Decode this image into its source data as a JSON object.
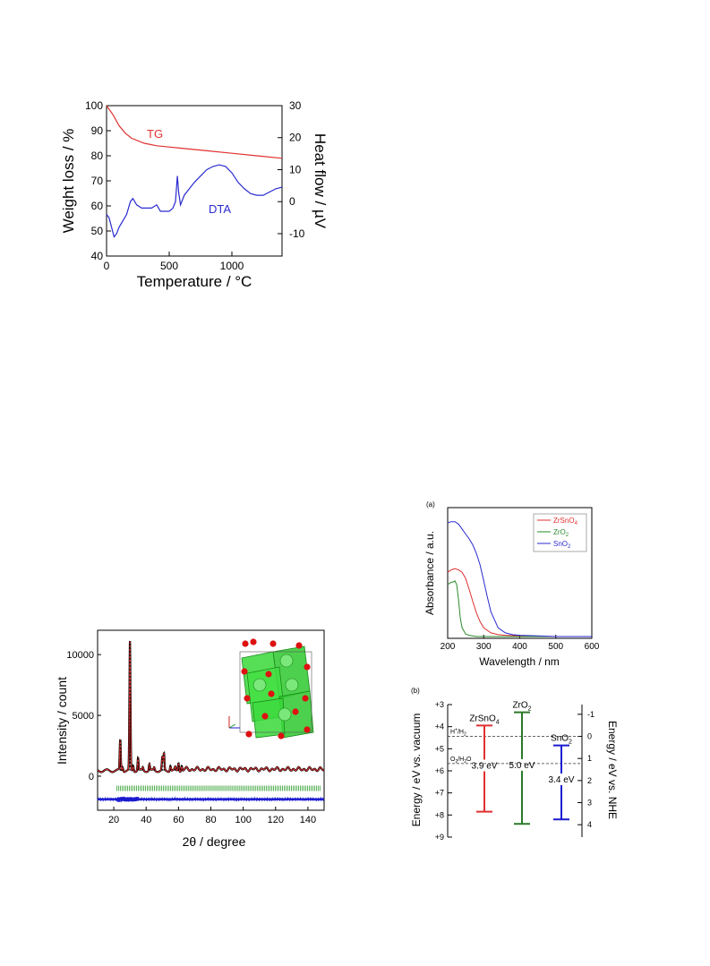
{
  "chart_data": [
    {
      "type": "line",
      "xlabel": "Temperature / °C",
      "ylabel_left": "Weight loss / %",
      "ylabel_right": "Heat flow / µV",
      "xlim": [
        0,
        1400
      ],
      "ylim_left": [
        40,
        100
      ],
      "ylim_right": [
        -17,
        30
      ],
      "x_ticks": [
        "0",
        "500",
        "1000"
      ],
      "y_left_ticks": [
        "40",
        "50",
        "60",
        "70",
        "80",
        "90",
        "100"
      ],
      "y_right_ticks": [
        "-10",
        "0",
        "10",
        "20",
        "30"
      ],
      "series": [
        {
          "name": "TG",
          "axis": "left",
          "color": "#e03030",
          "x": [
            0,
            50,
            100,
            150,
            200,
            300,
            400,
            500,
            600,
            800,
            1000,
            1200,
            1400
          ],
          "y": [
            100,
            96.5,
            92,
            89,
            87,
            85,
            84,
            83.5,
            83,
            82,
            81,
            80,
            79
          ]
        },
        {
          "name": "DTA",
          "axis": "right",
          "color": "#2a2ad0",
          "x": [
            0,
            20,
            40,
            60,
            80,
            100,
            130,
            160,
            190,
            210,
            240,
            280,
            320,
            360,
            400,
            430,
            460,
            500,
            530,
            550,
            565,
            575,
            590,
            620,
            660,
            700,
            750,
            800,
            850,
            900,
            950,
            1000,
            1050,
            1100,
            1150,
            1200,
            1250,
            1300,
            1350,
            1400
          ],
          "y": [
            -4,
            -5,
            -8,
            -11,
            -10,
            -8,
            -6,
            -4,
            0,
            1,
            -1,
            -2,
            -2,
            -2,
            -1,
            -3,
            -3,
            -3,
            -2,
            0,
            8,
            3,
            -1,
            2,
            4,
            6,
            8,
            10,
            11,
            11.5,
            11,
            9,
            6,
            4,
            2.5,
            2,
            2,
            3,
            4,
            4.5
          ]
        }
      ]
    },
    {
      "type": "line",
      "xlabel": "Wavelength / nm",
      "ylabel": "Absorbance / a.u.",
      "panel_label": "(a)",
      "xlim": [
        200,
        600
      ],
      "x_ticks": [
        "200",
        "300",
        "400",
        "500",
        "600"
      ],
      "legend": "top-right",
      "series": [
        {
          "name": "ZrSnO",
          "subscript": "4",
          "color": "#e03030",
          "x": [
            200,
            210,
            220,
            230,
            240,
            250,
            260,
            270,
            280,
            290,
            300,
            320,
            340,
            360,
            400,
            500,
            600
          ],
          "y": [
            0.52,
            0.54,
            0.55,
            0.54,
            0.52,
            0.47,
            0.38,
            0.28,
            0.19,
            0.12,
            0.07,
            0.03,
            0.015,
            0.01,
            0.005,
            0.0,
            0.0
          ]
        },
        {
          "name": "ZrO",
          "subscript": "2",
          "color": "#2a8a2a",
          "x": [
            200,
            210,
            215,
            220,
            225,
            230,
            235,
            240,
            250,
            260,
            280,
            300,
            600
          ],
          "y": [
            0.42,
            0.44,
            0.44,
            0.45,
            0.42,
            0.3,
            0.15,
            0.07,
            0.02,
            0.01,
            0.0,
            0.0,
            0.0
          ]
        },
        {
          "name": "SnO",
          "subscript": "2",
          "color": "#2a2ad0",
          "x": [
            200,
            210,
            220,
            230,
            240,
            250,
            260,
            270,
            280,
            290,
            300,
            310,
            320,
            340,
            360,
            380,
            400,
            450,
            500,
            600
          ],
          "y": [
            0.92,
            0.93,
            0.93,
            0.91,
            0.87,
            0.83,
            0.79,
            0.74,
            0.67,
            0.58,
            0.45,
            0.32,
            0.2,
            0.07,
            0.03,
            0.015,
            0.01,
            0.005,
            0.0,
            0.0
          ]
        }
      ]
    },
    {
      "type": "scatter",
      "xlabel": "2θ / degree",
      "ylabel": "Intensity / count",
      "xlim": [
        10,
        150
      ],
      "ylim": [
        -2800,
        12000
      ],
      "x_ticks": [
        "20",
        "40",
        "60",
        "80",
        "100",
        "120",
        "140"
      ],
      "y_ticks": [
        "0",
        "5000",
        "10000"
      ],
      "peaks": [
        {
          "x": 24,
          "y": 3000
        },
        {
          "x": 25.5,
          "y": 800
        },
        {
          "x": 30,
          "y": 11100
        },
        {
          "x": 32,
          "y": 900
        },
        {
          "x": 35,
          "y": 1500
        },
        {
          "x": 38,
          "y": 700
        },
        {
          "x": 42,
          "y": 1000
        },
        {
          "x": 45,
          "y": 700
        },
        {
          "x": 50,
          "y": 1500
        },
        {
          "x": 51,
          "y": 1800
        },
        {
          "x": 55,
          "y": 900
        },
        {
          "x": 58,
          "y": 700
        },
        {
          "x": 60,
          "y": 1100
        },
        {
          "x": 62,
          "y": 900
        }
      ],
      "background_level": 450,
      "reflection_marker_y": -1000,
      "difference_offset": -1900
    },
    {
      "type": "diagram",
      "panel_label": "(b)",
      "ylabel_left": "Energy / eV vs. vacuum",
      "ylabel_right": "Energy / eV vs. NHE",
      "left_ticks": [
        "+3",
        "+4",
        "+5",
        "+6",
        "+7",
        "+8",
        "+9"
      ],
      "right_ticks": [
        "-1",
        "0",
        "1",
        "2",
        "3",
        "4"
      ],
      "ylim": [
        3,
        9
      ],
      "reference_lines": [
        {
          "label": "H",
          "label_sup": "+",
          "label_tail": "/H",
          "label_sub": "2",
          "energy": 4.44
        },
        {
          "label": "O",
          "label_sub": "2",
          "label_tail": "/H",
          "label_tail2": "2",
          "label_end": "O",
          "energy": 5.67
        }
      ],
      "materials": [
        {
          "name": "ZrSnO",
          "sub": "4",
          "cb": 3.95,
          "vb": 7.85,
          "gap_label": "3.9 eV",
          "color": "#e03030"
        },
        {
          "name": "ZrO",
          "sub": "2",
          "cb": 3.35,
          "vb": 8.4,
          "gap_label": "5.0 eV",
          "color": "#2a7a2a"
        },
        {
          "name": "SnO",
          "sub": "2",
          "cb": 4.85,
          "vb": 8.2,
          "gap_label": "3.4 eV",
          "color": "#1a1ad0"
        }
      ]
    }
  ]
}
